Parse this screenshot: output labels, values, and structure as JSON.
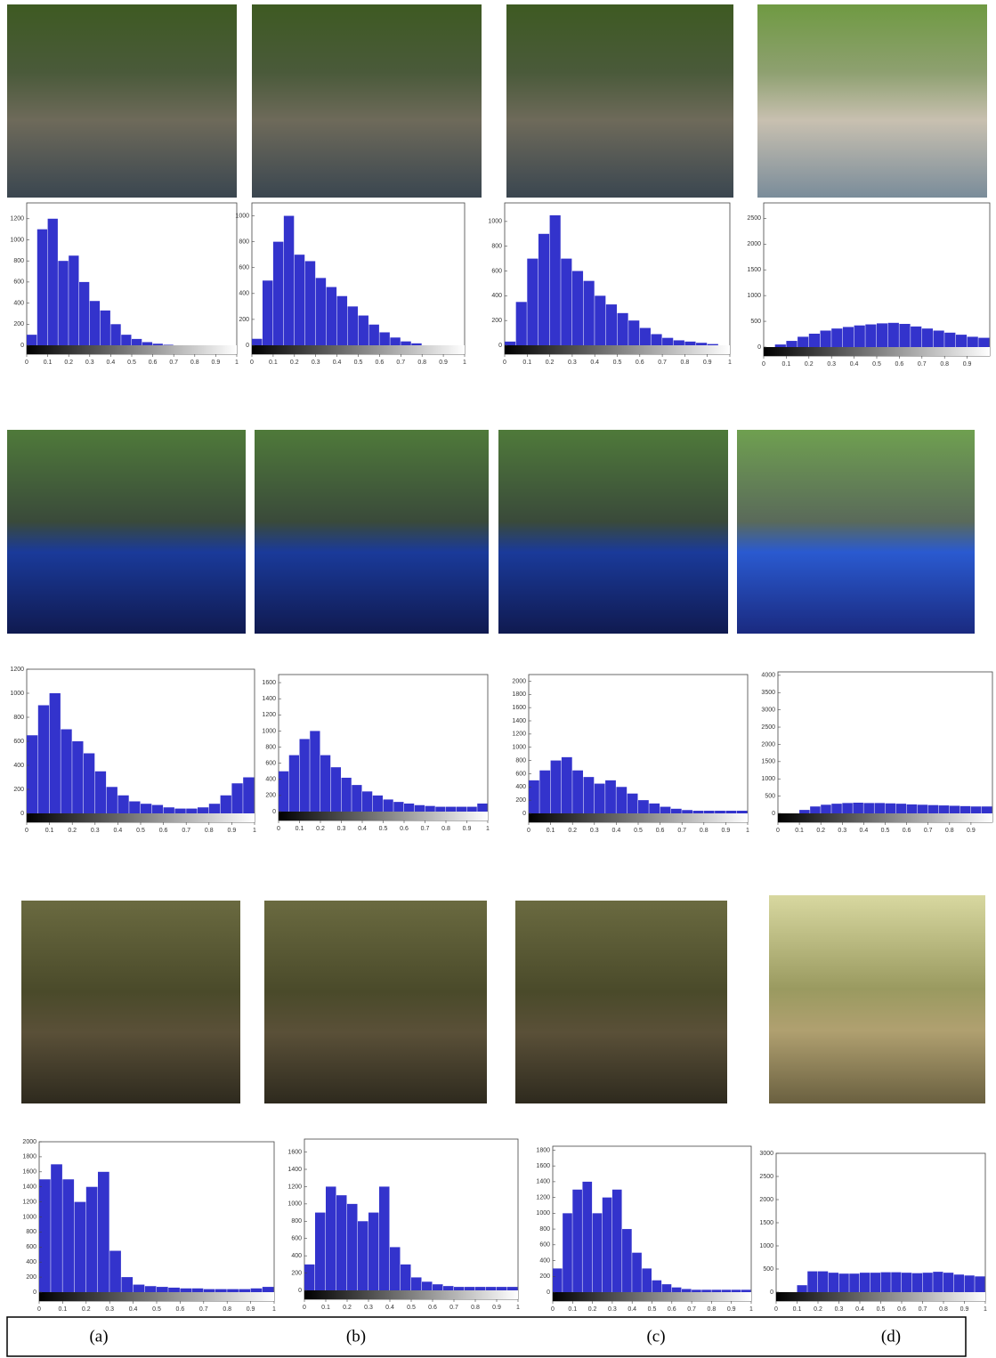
{
  "chart_data": [
    {
      "type": "histogram",
      "color": "#3333cc",
      "bins": [
        0,
        0.05,
        0.1,
        0.15,
        0.2,
        0.25,
        0.3,
        0.35,
        0.4,
        0.45,
        0.5,
        0.55,
        0.6,
        0.65,
        0.7,
        0.75,
        0.8,
        0.85,
        0.9,
        0.95,
        1
      ],
      "values": [
        100,
        1100,
        1200,
        800,
        850,
        600,
        420,
        330,
        200,
        100,
        60,
        30,
        15,
        5,
        0,
        0,
        0,
        0,
        0,
        0
      ],
      "xlim": [
        0,
        1
      ],
      "xticks": [
        0,
        0.1,
        0.2,
        0.3,
        0.4,
        0.5,
        0.6,
        0.7,
        0.8,
        0.9,
        1
      ],
      "ylim": [
        0,
        1350
      ],
      "yticks": [
        0,
        200,
        400,
        600,
        800,
        1000,
        1200
      ]
    },
    {
      "type": "histogram",
      "color": "#3333cc",
      "bins": [
        0,
        0.05,
        0.1,
        0.15,
        0.2,
        0.25,
        0.3,
        0.35,
        0.4,
        0.45,
        0.5,
        0.55,
        0.6,
        0.65,
        0.7,
        0.75,
        0.8,
        0.85,
        0.9,
        0.95,
        1
      ],
      "values": [
        50,
        500,
        800,
        1000,
        700,
        650,
        520,
        450,
        380,
        300,
        230,
        160,
        100,
        60,
        30,
        15,
        0,
        0,
        0,
        0
      ],
      "xlim": [
        0,
        1
      ],
      "xticks": [
        0,
        0.1,
        0.2,
        0.3,
        0.4,
        0.5,
        0.6,
        0.7,
        0.8,
        0.9,
        1
      ],
      "ylim": [
        0,
        1100
      ],
      "yticks": [
        0,
        200,
        400,
        600,
        800,
        1000
      ]
    },
    {
      "type": "histogram",
      "color": "#3333cc",
      "bins": [
        0,
        0.05,
        0.1,
        0.15,
        0.2,
        0.25,
        0.3,
        0.35,
        0.4,
        0.45,
        0.5,
        0.55,
        0.6,
        0.65,
        0.7,
        0.75,
        0.8,
        0.85,
        0.9,
        0.95,
        1
      ],
      "values": [
        30,
        350,
        700,
        900,
        1050,
        700,
        600,
        520,
        400,
        330,
        260,
        200,
        140,
        90,
        60,
        40,
        30,
        20,
        10,
        0
      ],
      "xlim": [
        0,
        1
      ],
      "xticks": [
        0,
        0.1,
        0.2,
        0.3,
        0.4,
        0.5,
        0.6,
        0.7,
        0.8,
        0.9,
        1
      ],
      "ylim": [
        0,
        1150
      ],
      "yticks": [
        0,
        200,
        400,
        600,
        800,
        1000
      ]
    },
    {
      "type": "histogram",
      "color": "#3333cc",
      "bins": [
        0,
        0.05,
        0.1,
        0.15,
        0.2,
        0.25,
        0.3,
        0.35,
        0.4,
        0.45,
        0.5,
        0.55,
        0.6,
        0.65,
        0.7,
        0.75,
        0.8,
        0.85,
        0.9,
        0.95,
        1
      ],
      "values": [
        0,
        50,
        120,
        200,
        260,
        320,
        360,
        390,
        420,
        440,
        460,
        470,
        450,
        400,
        360,
        320,
        280,
        240,
        200,
        180
      ],
      "xlim": [
        0,
        1
      ],
      "xticks": [
        0,
        0.1,
        0.2,
        0.3,
        0.4,
        0.5,
        0.6,
        0.7,
        0.8,
        0.9
      ],
      "ylim": [
        0,
        2800
      ],
      "yticks": [
        0,
        500,
        1000,
        1500,
        2000,
        2500
      ]
    },
    {
      "type": "histogram",
      "color": "#3333cc",
      "bins": [
        0,
        0.05,
        0.1,
        0.15,
        0.2,
        0.25,
        0.3,
        0.35,
        0.4,
        0.45,
        0.5,
        0.55,
        0.6,
        0.65,
        0.7,
        0.75,
        0.8,
        0.85,
        0.9,
        0.95,
        1
      ],
      "values": [
        650,
        900,
        1000,
        700,
        600,
        500,
        350,
        220,
        150,
        100,
        80,
        70,
        50,
        40,
        40,
        50,
        80,
        150,
        250,
        300
      ],
      "xlim": [
        0,
        1
      ],
      "xticks": [
        0,
        0.1,
        0.2,
        0.3,
        0.4,
        0.5,
        0.6,
        0.7,
        0.8,
        0.9,
        1
      ],
      "ylim": [
        0,
        1200
      ],
      "yticks": [
        0,
        200,
        400,
        600,
        800,
        1000,
        1200
      ]
    },
    {
      "type": "histogram",
      "color": "#3333cc",
      "bins": [
        0,
        0.05,
        0.1,
        0.15,
        0.2,
        0.25,
        0.3,
        0.35,
        0.4,
        0.45,
        0.5,
        0.55,
        0.6,
        0.65,
        0.7,
        0.75,
        0.8,
        0.85,
        0.9,
        0.95,
        1
      ],
      "values": [
        500,
        700,
        900,
        1000,
        700,
        550,
        420,
        330,
        250,
        200,
        150,
        120,
        100,
        80,
        70,
        60,
        60,
        60,
        60,
        100
      ],
      "xlim": [
        0,
        1
      ],
      "xticks": [
        0,
        0.1,
        0.2,
        0.3,
        0.4,
        0.5,
        0.6,
        0.7,
        0.8,
        0.9,
        1
      ],
      "ylim": [
        0,
        1700
      ],
      "yticks": [
        0,
        200,
        400,
        600,
        800,
        1000,
        1200,
        1400,
        1600
      ]
    },
    {
      "type": "histogram",
      "color": "#3333cc",
      "bins": [
        0,
        0.05,
        0.1,
        0.15,
        0.2,
        0.25,
        0.3,
        0.35,
        0.4,
        0.45,
        0.5,
        0.55,
        0.6,
        0.65,
        0.7,
        0.75,
        0.8,
        0.85,
        0.9,
        0.95,
        1
      ],
      "values": [
        500,
        650,
        800,
        850,
        650,
        550,
        450,
        500,
        400,
        300,
        200,
        150,
        100,
        70,
        50,
        40,
        40,
        40,
        40,
        40
      ],
      "xlim": [
        0,
        1
      ],
      "xticks": [
        0,
        0.1,
        0.2,
        0.3,
        0.4,
        0.5,
        0.6,
        0.7,
        0.8,
        0.9,
        1
      ],
      "ylim": [
        0,
        2100
      ],
      "yticks": [
        0,
        200,
        400,
        600,
        800,
        1000,
        1200,
        1400,
        1600,
        1800,
        2000
      ]
    },
    {
      "type": "histogram",
      "color": "#3333cc",
      "bins": [
        0,
        0.05,
        0.1,
        0.15,
        0.2,
        0.25,
        0.3,
        0.35,
        0.4,
        0.45,
        0.5,
        0.55,
        0.6,
        0.65,
        0.7,
        0.75,
        0.8,
        0.85,
        0.9,
        0.95,
        1
      ],
      "values": [
        0,
        0,
        100,
        200,
        250,
        280,
        300,
        310,
        300,
        300,
        290,
        280,
        260,
        250,
        240,
        230,
        220,
        210,
        200,
        200
      ],
      "xlim": [
        0,
        1
      ],
      "xticks": [
        0,
        0.1,
        0.2,
        0.3,
        0.4,
        0.5,
        0.6,
        0.7,
        0.8,
        0.9
      ],
      "ylim": [
        0,
        4100
      ],
      "yticks": [
        0,
        500,
        1000,
        1500,
        2000,
        2500,
        3000,
        3500,
        4000
      ]
    },
    {
      "type": "histogram",
      "color": "#3333cc",
      "bins": [
        0,
        0.05,
        0.1,
        0.15,
        0.2,
        0.25,
        0.3,
        0.35,
        0.4,
        0.45,
        0.5,
        0.55,
        0.6,
        0.65,
        0.7,
        0.75,
        0.8,
        0.85,
        0.9,
        0.95,
        1
      ],
      "values": [
        1500,
        1700,
        1500,
        1200,
        1400,
        1600,
        550,
        200,
        100,
        80,
        70,
        60,
        50,
        50,
        40,
        40,
        40,
        40,
        50,
        70
      ],
      "xlim": [
        0,
        1
      ],
      "xticks": [
        0,
        0.1,
        0.2,
        0.3,
        0.4,
        0.5,
        0.6,
        0.7,
        0.8,
        0.9,
        1
      ],
      "ylim": [
        0,
        2000
      ],
      "yticks": [
        0,
        200,
        400,
        600,
        800,
        1000,
        1200,
        1400,
        1600,
        1800,
        2000
      ]
    },
    {
      "type": "histogram",
      "color": "#3333cc",
      "bins": [
        0,
        0.05,
        0.1,
        0.15,
        0.2,
        0.25,
        0.3,
        0.35,
        0.4,
        0.45,
        0.5,
        0.55,
        0.6,
        0.65,
        0.7,
        0.75,
        0.8,
        0.85,
        0.9,
        0.95,
        1
      ],
      "values": [
        300,
        900,
        1200,
        1100,
        1000,
        800,
        900,
        1200,
        500,
        300,
        150,
        100,
        70,
        50,
        40,
        40,
        40,
        40,
        40,
        40
      ],
      "xlim": [
        0,
        1
      ],
      "xticks": [
        0,
        0.1,
        0.2,
        0.3,
        0.4,
        0.5,
        0.6,
        0.7,
        0.8,
        0.9,
        1
      ],
      "ylim": [
        0,
        1750
      ],
      "yticks": [
        0,
        200,
        400,
        600,
        800,
        1000,
        1200,
        1400,
        1600
      ]
    },
    {
      "type": "histogram",
      "color": "#3333cc",
      "bins": [
        0,
        0.05,
        0.1,
        0.15,
        0.2,
        0.25,
        0.3,
        0.35,
        0.4,
        0.45,
        0.5,
        0.55,
        0.6,
        0.65,
        0.7,
        0.75,
        0.8,
        0.85,
        0.9,
        0.95,
        1
      ],
      "values": [
        300,
        1000,
        1300,
        1400,
        1000,
        1200,
        1300,
        800,
        500,
        300,
        150,
        100,
        60,
        40,
        30,
        30,
        30,
        30,
        30,
        30
      ],
      "xlim": [
        0,
        1
      ],
      "xticks": [
        0,
        0.1,
        0.2,
        0.3,
        0.4,
        0.5,
        0.6,
        0.7,
        0.8,
        0.9,
        1
      ],
      "ylim": [
        0,
        1850
      ],
      "yticks": [
        0,
        200,
        400,
        600,
        800,
        1000,
        1200,
        1400,
        1600,
        1800
      ]
    },
    {
      "type": "histogram",
      "color": "#3333cc",
      "bins": [
        0,
        0.05,
        0.1,
        0.15,
        0.2,
        0.25,
        0.3,
        0.35,
        0.4,
        0.45,
        0.5,
        0.55,
        0.6,
        0.65,
        0.7,
        0.75,
        0.8,
        0.85,
        0.9,
        0.95,
        1
      ],
      "values": [
        0,
        0,
        150,
        450,
        450,
        420,
        400,
        400,
        420,
        420,
        430,
        430,
        420,
        410,
        420,
        440,
        420,
        380,
        360,
        340
      ],
      "xlim": [
        0,
        1
      ],
      "xticks": [
        0,
        0.1,
        0.2,
        0.3,
        0.4,
        0.5,
        0.6,
        0.7,
        0.8,
        0.9,
        1
      ],
      "ylim": [
        0,
        3000
      ],
      "yticks": [
        0,
        500,
        1000,
        1500,
        2000,
        2500,
        3000
      ]
    }
  ],
  "captions": [
    "(a)",
    "(b)",
    "(c)",
    "(d)"
  ]
}
